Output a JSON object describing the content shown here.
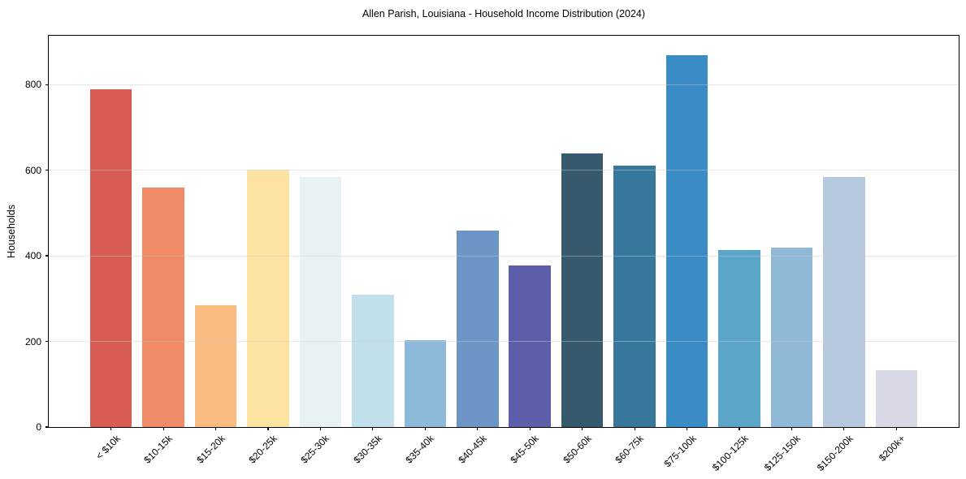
{
  "chart_data": {
    "type": "bar",
    "title": "Allen Parish, Louisiana - Household Income Distribution (2024)",
    "xlabel": "",
    "ylabel": "Households",
    "categories": [
      "< $10k",
      "$10-15k",
      "$15-20k",
      "$20-25k",
      "$25-30k",
      "$30-35k",
      "$35-40k",
      "$40-45k",
      "$45-50k",
      "$50-60k",
      "$60-75k",
      "$75-100k",
      "$100-125k",
      "$125-150k",
      "$150-200k",
      "$200k+"
    ],
    "values": [
      788,
      560,
      285,
      602,
      585,
      310,
      203,
      458,
      378,
      640,
      611,
      868,
      414,
      420,
      585,
      132
    ],
    "colors": [
      "#d85c52",
      "#f18a66",
      "#f9bb7f",
      "#fce3a2",
      "#e7f2f5",
      "#c1e0ec",
      "#8dbada",
      "#6c94c4",
      "#5c5ea9",
      "#36596e",
      "#37779b",
      "#3a8dc4",
      "#5aa5c8",
      "#90b8d7",
      "#b7c9df",
      "#d8d9e6"
    ],
    "yticks": [
      0,
      200,
      400,
      600,
      800
    ],
    "ylim": [
      0,
      914
    ],
    "grid": "horizontal",
    "legend": "none",
    "bar_width_units": 0.8,
    "x_units_left": -1.19,
    "x_units_right": 16.19
  }
}
